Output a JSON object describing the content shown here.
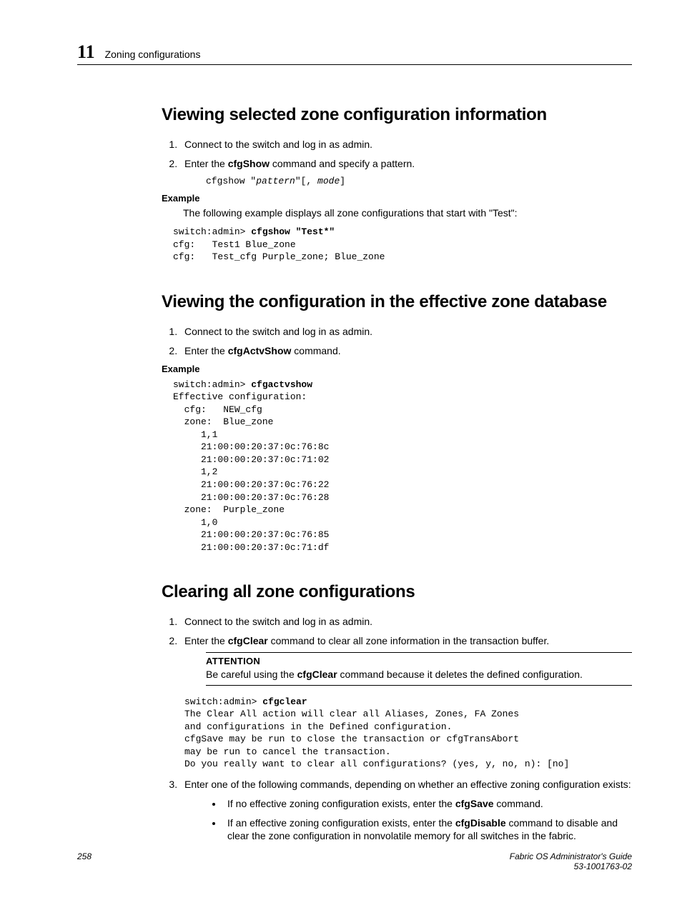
{
  "header": {
    "chapter_num": "11",
    "chapter_title": "Zoning configurations"
  },
  "sections": [
    {
      "title": "Viewing selected zone configuration information",
      "steps": [
        {
          "text": "Connect to the switch and log in as admin."
        },
        {
          "pre": "Enter the ",
          "bold": "cfgShow",
          "post": " command and specify a pattern."
        }
      ],
      "code_inline": {
        "pre": "cfgshow \"",
        "italic": "pattern",
        "post": "\"[, ",
        "italic2": "mode",
        "post2": "]"
      },
      "example_label": "Example",
      "example_intro": "The following example displays all zone configurations that start with \"Test\":",
      "example_code": {
        "prompt": "switch:admin> ",
        "cmd": "cfgshow \"Test*\"",
        "output": "cfg:   Test1 Blue_zone\ncfg:   Test_cfg Purple_zone; Blue_zone"
      }
    },
    {
      "title": "Viewing the configuration in the effective zone database",
      "steps": [
        {
          "text": "Connect to the switch and log in as admin."
        },
        {
          "pre": "Enter the ",
          "bold": "cfgActvShow",
          "post": " command."
        }
      ],
      "example_label": "Example",
      "example_code": {
        "prompt": "switch:admin> ",
        "cmd": "cfgactvshow",
        "output": "Effective configuration:\n  cfg:   NEW_cfg\n  zone:  Blue_zone\n     1,1\n     21:00:00:20:37:0c:76:8c\n     21:00:00:20:37:0c:71:02\n     1,2\n     21:00:00:20:37:0c:76:22\n     21:00:00:20:37:0c:76:28\n  zone:  Purple_zone\n     1,0\n     21:00:00:20:37:0c:76:85\n     21:00:00:20:37:0c:71:df"
      }
    },
    {
      "title": "Clearing all zone configurations",
      "steps_a": [
        {
          "text": "Connect to the switch and log in as admin."
        },
        {
          "pre": "Enter the ",
          "bold": "cfgClear",
          "post": " command to clear all zone information in the transaction buffer."
        }
      ],
      "attention": {
        "title": "ATTENTION",
        "pre": "Be careful using the ",
        "bold": "cfgClear",
        "post": " command because it deletes the defined configuration."
      },
      "example_code": {
        "prompt": "switch:admin> ",
        "cmd": "cfgclear",
        "output": "The Clear All action will clear all Aliases, Zones, FA Zones\nand configurations in the Defined configuration.\ncfgSave may be run to close the transaction or cfgTransAbort\nmay be run to cancel the transaction.\nDo you really want to clear all configurations? (yes, y, no, n): [no]"
      },
      "steps_b": [
        {
          "text": "Enter one of the following commands, depending on whether an effective zoning configuration exists:"
        }
      ],
      "bullets": [
        {
          "pre": "If no effective zoning configuration exists, enter the ",
          "bold": "cfgSave",
          "post": " command."
        },
        {
          "pre": "If an effective zoning configuration exists, enter the ",
          "bold": "cfgDisable",
          "post": " command to disable and clear the zone configuration in nonvolatile memory for all switches in the fabric."
        }
      ]
    }
  ],
  "footer": {
    "page": "258",
    "book": "Fabric OS Administrator's Guide",
    "docnum": "53-1001763-02"
  }
}
